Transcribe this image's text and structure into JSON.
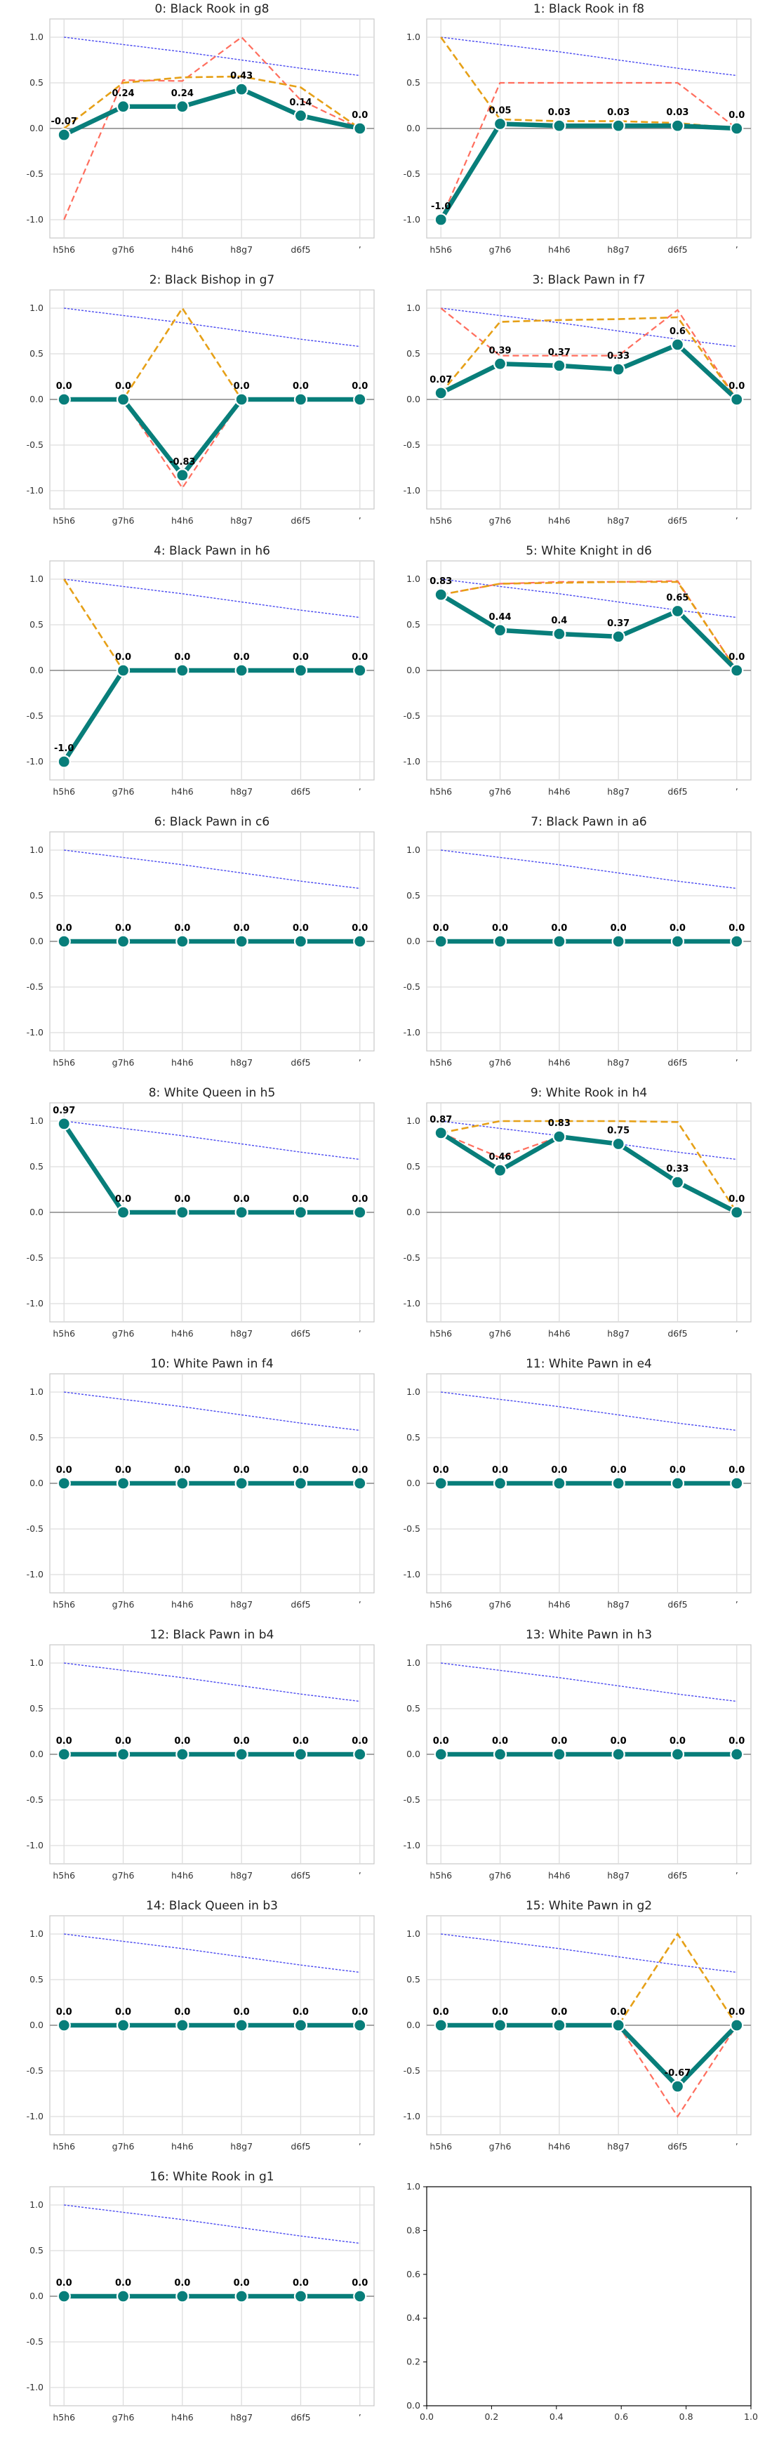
{
  "figure": {
    "x_tick_labels": [
      "h5h6",
      "g7h6",
      "h4h6",
      "h8g7",
      "d6f5",
      "’"
    ],
    "y_tick_labels": [
      "1.0",
      "0.5",
      "0.0",
      "-0.5",
      "-1.0"
    ],
    "empty_axis_x_ticks": [
      "0.0",
      "0.2",
      "0.4",
      "0.6",
      "0.8",
      "1.0"
    ],
    "empty_axis_y_ticks": [
      "0.0",
      "0.2",
      "0.4",
      "0.6",
      "0.8",
      "1.0"
    ]
  },
  "colors": {
    "main": "#087e7a",
    "red": "#ff6e5e",
    "orange": "#e6a017",
    "blue": "#4a4af0",
    "zero": "#888888",
    "grid": "#dddddd"
  },
  "chart_data": [
    {
      "type": "line",
      "title": "0: Black Rook in g8",
      "x": [
        0,
        1,
        2,
        3,
        4,
        5
      ],
      "ylim": [
        -1.2,
        1.2
      ],
      "series": [
        {
          "role": "blue",
          "values": [
            1.0,
            0.92,
            0.84,
            0.75,
            0.66,
            0.58
          ]
        },
        {
          "role": "red",
          "values": [
            -1.0,
            0.53,
            0.52,
            1.0,
            0.31,
            0.0
          ]
        },
        {
          "role": "orange",
          "values": [
            0.0,
            0.5,
            0.56,
            0.57,
            0.45,
            0.0
          ]
        },
        {
          "role": "main",
          "values": [
            -0.07,
            0.24,
            0.24,
            0.43,
            0.14,
            0.0
          ],
          "labels": [
            "-0.07",
            "0.24",
            "0.24",
            "0.43",
            "0.14",
            "0.0"
          ]
        }
      ]
    },
    {
      "type": "line",
      "title": "1: Black Rook in f8",
      "x": [
        0,
        1,
        2,
        3,
        4,
        5
      ],
      "ylim": [
        -1.2,
        1.2
      ],
      "series": [
        {
          "role": "blue",
          "values": [
            1.0,
            0.92,
            0.84,
            0.75,
            0.66,
            0.58
          ]
        },
        {
          "role": "red",
          "values": [
            -1.0,
            0.5,
            0.5,
            0.5,
            0.5,
            0.0
          ]
        },
        {
          "role": "orange",
          "values": [
            1.0,
            0.1,
            0.08,
            0.08,
            0.06,
            0.0
          ]
        },
        {
          "role": "main",
          "values": [
            -1.0,
            0.05,
            0.03,
            0.03,
            0.03,
            0.0
          ],
          "labels": [
            "-1.0",
            "0.05",
            "0.03",
            "0.03",
            "0.03",
            "0.0"
          ]
        }
      ]
    },
    {
      "type": "line",
      "title": "2: Black Bishop in g7",
      "x": [
        0,
        1,
        2,
        3,
        4,
        5
      ],
      "ylim": [
        -1.2,
        1.2
      ],
      "series": [
        {
          "role": "blue",
          "values": [
            1.0,
            0.92,
            0.84,
            0.75,
            0.66,
            0.58
          ]
        },
        {
          "role": "red",
          "values": [
            0.0,
            0.0,
            -0.97,
            0.0,
            0.0,
            0.0
          ]
        },
        {
          "role": "orange",
          "values": [
            0.0,
            0.0,
            1.0,
            0.0,
            0.0,
            0.0
          ]
        },
        {
          "role": "main",
          "values": [
            0.0,
            0.0,
            -0.83,
            0.0,
            0.0,
            0.0
          ],
          "labels": [
            "0.0",
            "0.0",
            "-0.83",
            "0.0",
            "0.0",
            "0.0"
          ]
        }
      ]
    },
    {
      "type": "line",
      "title": "3: Black Pawn in f7",
      "x": [
        0,
        1,
        2,
        3,
        4,
        5
      ],
      "ylim": [
        -1.2,
        1.2
      ],
      "series": [
        {
          "role": "blue",
          "values": [
            1.0,
            0.92,
            0.84,
            0.75,
            0.66,
            0.58
          ]
        },
        {
          "role": "red",
          "values": [
            1.0,
            0.48,
            0.48,
            0.48,
            0.98,
            0.0
          ]
        },
        {
          "role": "orange",
          "values": [
            0.07,
            0.85,
            0.87,
            0.88,
            0.9,
            0.0
          ]
        },
        {
          "role": "main",
          "values": [
            0.07,
            0.39,
            0.37,
            0.33,
            0.6,
            0.0
          ],
          "labels": [
            "0.07",
            "0.39",
            "0.37",
            "0.33",
            "0.6",
            "0.0"
          ]
        }
      ]
    },
    {
      "type": "line",
      "title": "4: Black Pawn in h6",
      "x": [
        0,
        1,
        2,
        3,
        4,
        5
      ],
      "ylim": [
        -1.2,
        1.2
      ],
      "series": [
        {
          "role": "blue",
          "values": [
            1.0,
            0.92,
            0.84,
            0.75,
            0.66,
            0.58
          ]
        },
        {
          "role": "red",
          "values": [
            -1.0,
            0.0,
            0.0,
            0.0,
            0.0,
            0.0
          ]
        },
        {
          "role": "orange",
          "values": [
            1.0,
            0.0,
            0.0,
            0.0,
            0.0,
            0.0
          ]
        },
        {
          "role": "main",
          "values": [
            -1.0,
            0.0,
            0.0,
            0.0,
            0.0,
            0.0
          ],
          "labels": [
            "-1.0",
            "0.0",
            "0.0",
            "0.0",
            "0.0",
            "0.0"
          ]
        }
      ]
    },
    {
      "type": "line",
      "title": "5: White Knight in d6",
      "x": [
        0,
        1,
        2,
        3,
        4,
        5
      ],
      "ylim": [
        -1.2,
        1.2
      ],
      "series": [
        {
          "role": "blue",
          "values": [
            1.0,
            0.92,
            0.84,
            0.75,
            0.66,
            0.58
          ]
        },
        {
          "role": "red",
          "values": [
            0.83,
            0.95,
            0.97,
            0.97,
            0.98,
            0.0
          ]
        },
        {
          "role": "orange",
          "values": [
            0.83,
            0.95,
            0.96,
            0.97,
            0.97,
            0.0
          ]
        },
        {
          "role": "main",
          "values": [
            0.83,
            0.44,
            0.4,
            0.37,
            0.65,
            0.0
          ],
          "labels": [
            "0.83",
            "0.44",
            "0.4",
            "0.37",
            "0.65",
            "0.0"
          ]
        }
      ]
    },
    {
      "type": "line",
      "title": "6: Black Pawn in c6",
      "x": [
        0,
        1,
        2,
        3,
        4,
        5
      ],
      "ylim": [
        -1.2,
        1.2
      ],
      "series": [
        {
          "role": "blue",
          "values": [
            1.0,
            0.92,
            0.84,
            0.75,
            0.66,
            0.58
          ]
        },
        {
          "role": "main",
          "values": [
            0.0,
            0.0,
            0.0,
            0.0,
            0.0,
            0.0
          ],
          "labels": [
            "0.0",
            "0.0",
            "0.0",
            "0.0",
            "0.0",
            "0.0"
          ]
        }
      ]
    },
    {
      "type": "line",
      "title": "7: Black Pawn in a6",
      "x": [
        0,
        1,
        2,
        3,
        4,
        5
      ],
      "ylim": [
        -1.2,
        1.2
      ],
      "series": [
        {
          "role": "blue",
          "values": [
            1.0,
            0.92,
            0.84,
            0.75,
            0.66,
            0.58
          ]
        },
        {
          "role": "main",
          "values": [
            0.0,
            0.0,
            0.0,
            0.0,
            0.0,
            0.0
          ],
          "labels": [
            "0.0",
            "0.0",
            "0.0",
            "0.0",
            "0.0",
            "0.0"
          ]
        }
      ]
    },
    {
      "type": "line",
      "title": "8: White Queen in h5",
      "x": [
        0,
        1,
        2,
        3,
        4,
        5
      ],
      "ylim": [
        -1.2,
        1.2
      ],
      "series": [
        {
          "role": "blue",
          "values": [
            1.0,
            0.92,
            0.84,
            0.75,
            0.66,
            0.58
          ]
        },
        {
          "role": "red",
          "values": [
            0.97,
            0.0,
            0.0,
            0.0,
            0.0,
            0.0
          ]
        },
        {
          "role": "orange",
          "values": [
            0.97,
            0.0,
            0.0,
            0.0,
            0.0,
            0.0
          ]
        },
        {
          "role": "main",
          "values": [
            0.97,
            0.0,
            0.0,
            0.0,
            0.0,
            0.0
          ],
          "labels": [
            "0.97",
            "0.0",
            "0.0",
            "0.0",
            "0.0",
            "0.0"
          ]
        }
      ]
    },
    {
      "type": "line",
      "title": "9: White Rook in h4",
      "x": [
        0,
        1,
        2,
        3,
        4,
        5
      ],
      "ylim": [
        -1.2,
        1.2
      ],
      "series": [
        {
          "role": "blue",
          "values": [
            1.0,
            0.92,
            0.84,
            0.75,
            0.66,
            0.58
          ]
        },
        {
          "role": "red",
          "values": [
            0.87,
            0.6,
            0.83,
            0.75,
            0.33,
            0.0
          ]
        },
        {
          "role": "orange",
          "values": [
            0.87,
            1.0,
            1.0,
            1.0,
            0.99,
            0.0
          ]
        },
        {
          "role": "main",
          "values": [
            0.87,
            0.46,
            0.83,
            0.75,
            0.33,
            0.0
          ],
          "labels": [
            "0.87",
            "0.46",
            "0.83",
            "0.75",
            "0.33",
            "0.0"
          ]
        }
      ]
    },
    {
      "type": "line",
      "title": "10: White Pawn in f4",
      "x": [
        0,
        1,
        2,
        3,
        4,
        5
      ],
      "ylim": [
        -1.2,
        1.2
      ],
      "series": [
        {
          "role": "blue",
          "values": [
            1.0,
            0.92,
            0.84,
            0.75,
            0.66,
            0.58
          ]
        },
        {
          "role": "main",
          "values": [
            0.0,
            0.0,
            0.0,
            0.0,
            0.0,
            0.0
          ],
          "labels": [
            "0.0",
            "0.0",
            "0.0",
            "0.0",
            "0.0",
            "0.0"
          ]
        }
      ]
    },
    {
      "type": "line",
      "title": "11: White Pawn in e4",
      "x": [
        0,
        1,
        2,
        3,
        4,
        5
      ],
      "ylim": [
        -1.2,
        1.2
      ],
      "series": [
        {
          "role": "blue",
          "values": [
            1.0,
            0.92,
            0.84,
            0.75,
            0.66,
            0.58
          ]
        },
        {
          "role": "main",
          "values": [
            0.0,
            0.0,
            0.0,
            0.0,
            0.0,
            0.0
          ],
          "labels": [
            "0.0",
            "0.0",
            "0.0",
            "0.0",
            "0.0",
            "0.0"
          ]
        }
      ]
    },
    {
      "type": "line",
      "title": "12: Black Pawn in b4",
      "x": [
        0,
        1,
        2,
        3,
        4,
        5
      ],
      "ylim": [
        -1.2,
        1.2
      ],
      "series": [
        {
          "role": "blue",
          "values": [
            1.0,
            0.92,
            0.84,
            0.75,
            0.66,
            0.58
          ]
        },
        {
          "role": "main",
          "values": [
            0.0,
            0.0,
            0.0,
            0.0,
            0.0,
            0.0
          ],
          "labels": [
            "0.0",
            "0.0",
            "0.0",
            "0.0",
            "0.0",
            "0.0"
          ]
        }
      ]
    },
    {
      "type": "line",
      "title": "13: White Pawn in h3",
      "x": [
        0,
        1,
        2,
        3,
        4,
        5
      ],
      "ylim": [
        -1.2,
        1.2
      ],
      "series": [
        {
          "role": "blue",
          "values": [
            1.0,
            0.92,
            0.84,
            0.75,
            0.66,
            0.58
          ]
        },
        {
          "role": "main",
          "values": [
            0.0,
            0.0,
            0.0,
            0.0,
            0.0,
            0.0
          ],
          "labels": [
            "0.0",
            "0.0",
            "0.0",
            "0.0",
            "0.0",
            "0.0"
          ]
        }
      ]
    },
    {
      "type": "line",
      "title": "14: Black Queen in b3",
      "x": [
        0,
        1,
        2,
        3,
        4,
        5
      ],
      "ylim": [
        -1.2,
        1.2
      ],
      "series": [
        {
          "role": "blue",
          "values": [
            1.0,
            0.92,
            0.84,
            0.75,
            0.66,
            0.58
          ]
        },
        {
          "role": "main",
          "values": [
            0.0,
            0.0,
            0.0,
            0.0,
            0.0,
            0.0
          ],
          "labels": [
            "0.0",
            "0.0",
            "0.0",
            "0.0",
            "0.0",
            "0.0"
          ]
        }
      ]
    },
    {
      "type": "line",
      "title": "15: White Pawn in g2",
      "x": [
        0,
        1,
        2,
        3,
        4,
        5
      ],
      "ylim": [
        -1.2,
        1.2
      ],
      "series": [
        {
          "role": "blue",
          "values": [
            1.0,
            0.92,
            0.84,
            0.75,
            0.66,
            0.58
          ]
        },
        {
          "role": "red",
          "values": [
            0.0,
            0.0,
            0.0,
            0.0,
            -1.0,
            0.0
          ]
        },
        {
          "role": "orange",
          "values": [
            0.0,
            0.0,
            0.0,
            0.0,
            1.0,
            0.0
          ]
        },
        {
          "role": "main",
          "values": [
            0.0,
            0.0,
            0.0,
            0.0,
            -0.67,
            0.0
          ],
          "labels": [
            "0.0",
            "0.0",
            "0.0",
            "0.0",
            "-0.67",
            "0.0"
          ]
        }
      ]
    },
    {
      "type": "line",
      "title": "16: White Rook in g1",
      "x": [
        0,
        1,
        2,
        3,
        4,
        5
      ],
      "ylim": [
        -1.2,
        1.2
      ],
      "series": [
        {
          "role": "blue",
          "values": [
            1.0,
            0.92,
            0.84,
            0.75,
            0.66,
            0.58
          ]
        },
        {
          "role": "main",
          "values": [
            0.0,
            0.0,
            0.0,
            0.0,
            0.0,
            0.0
          ],
          "labels": [
            "0.0",
            "0.0",
            "0.0",
            "0.0",
            "0.0",
            "0.0"
          ]
        }
      ]
    },
    {
      "type": "line",
      "title": "",
      "empty": true,
      "xlim": [
        0,
        1
      ],
      "ylim": [
        0,
        1
      ],
      "series": []
    }
  ]
}
